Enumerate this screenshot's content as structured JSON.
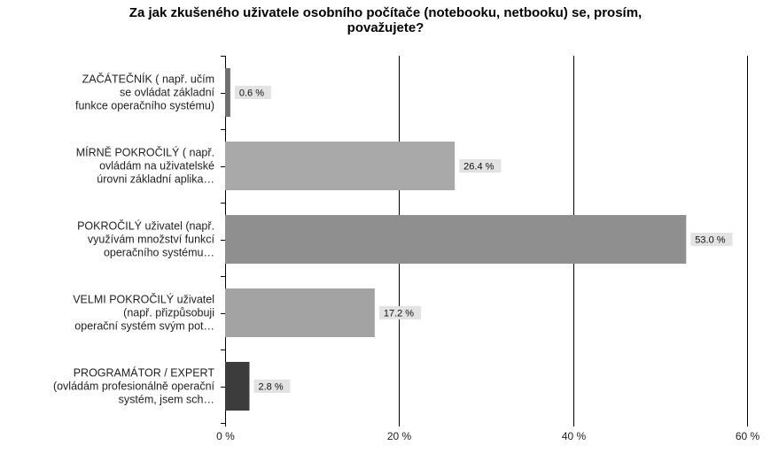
{
  "chart_data": {
    "type": "bar",
    "orientation": "horizontal",
    "title": "Za jak zkušeného uživatele osobního počítače (notebooku, netbooku) se, prosím, považujete?",
    "title_lines": [
      "Za jak zkušeného uživatele osobního počítače (notebooku, netbooku) se, prosím,",
      "považujete?"
    ],
    "categories": [
      [
        "ZAČÁTEČNÍK ( např. učím",
        "se ovládat základní",
        "funkce operačního systému)"
      ],
      [
        "MÍRNĚ POKROČILÝ ( např.",
        "ovládám na uživatelské",
        "úrovni základní aplika…"
      ],
      [
        "POKROČILÝ uživatel (např.",
        "využívám množství funkcí",
        "operačního systému…"
      ],
      [
        "VELMI POKROČILÝ uživatel",
        "(např. přizpůsobuji",
        "operační systém svým pot…"
      ],
      [
        "PROGRAMÁTOR / EXPERT",
        "(ovládám profesionálně operační",
        "systém, jsem sch…"
      ]
    ],
    "values": [
      0.6,
      26.4,
      53.0,
      17.2,
      2.8
    ],
    "value_labels": [
      "0.6 %",
      "26.4 %",
      "53.0 %",
      "17.2 %",
      "2.8 %"
    ],
    "bar_colors": [
      "#6e6e6e",
      "#a9a9a9",
      "#8f8f8f",
      "#a3a3a3",
      "#3c3c3c"
    ],
    "xlim": [
      0,
      60
    ],
    "xticks": [
      0,
      20,
      40,
      60
    ],
    "xtick_labels": [
      "0 %",
      "20 %",
      "40 %",
      "60 %"
    ],
    "grid": true,
    "grid_color": "#000000",
    "value_label_bg": "#e3e3e3"
  }
}
